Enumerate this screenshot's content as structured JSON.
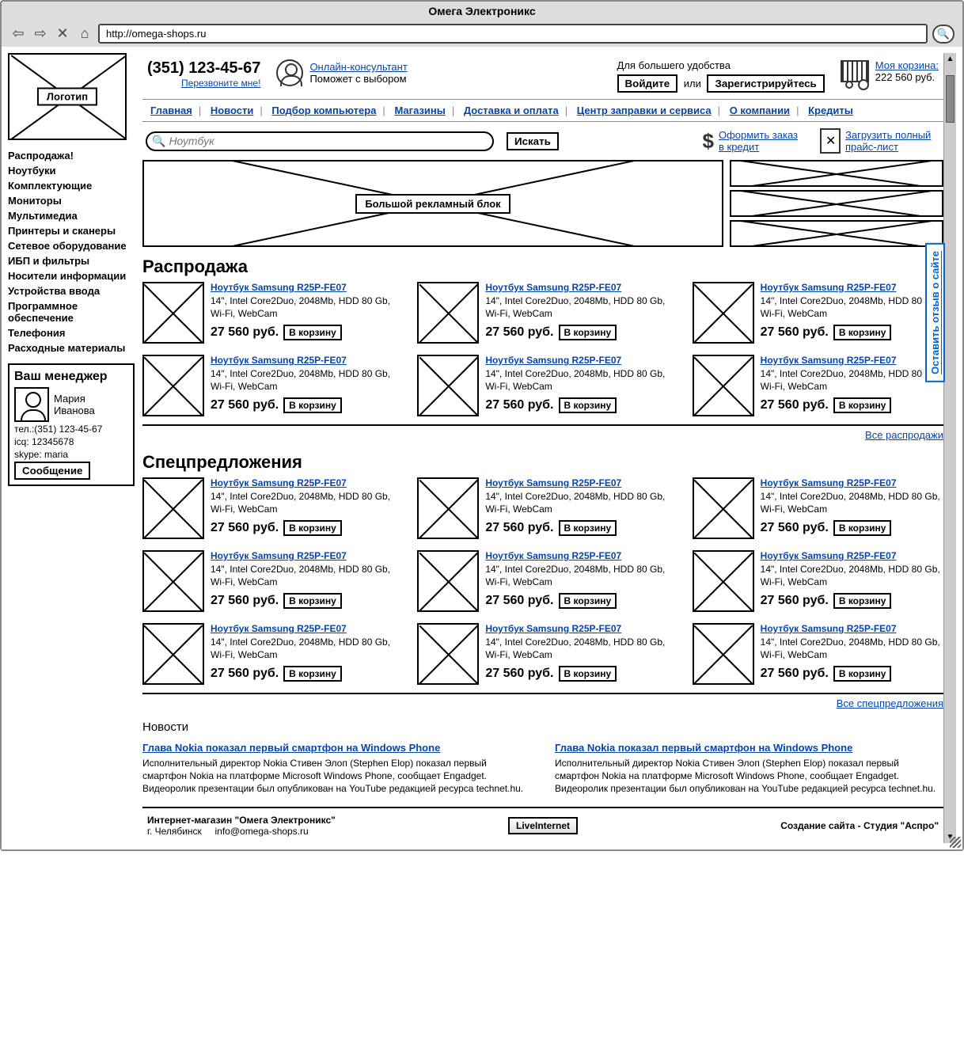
{
  "browser": {
    "title": "Омега Электроникс",
    "url": "http://omega-shops.ru"
  },
  "logo": {
    "label": "Логотип"
  },
  "header": {
    "phone": "(351) 123-45-67",
    "callback": "Перезвоните мне!",
    "consultant_link": "Онлайн-консультант",
    "consultant_hint": "Поможет с выбором",
    "convenience": "Для большего удобства",
    "login": "Войдите",
    "or": "или",
    "register": "Зарегистрируйтесь",
    "cart_label": "Моя корзина:",
    "cart_sum": "222 560 руб."
  },
  "nav": {
    "items": [
      "Главная",
      "Новости",
      "Подбор компьютера",
      "Магазины",
      "Доставка и оплата",
      "Центр заправки и сервиса",
      "О компании",
      "Кредиты"
    ]
  },
  "search": {
    "placeholder": "Ноутбук",
    "button": "Искать"
  },
  "sublinks": {
    "credit": "Оформить заказ в кредит",
    "price": "Загрузить полный прайс-лист"
  },
  "categories": [
    "Распродажа!",
    "Ноутбуки",
    "Комплектующие",
    "Мониторы",
    "Мультимедиа",
    "Принтеры и сканеры",
    "Сетевое оборудование",
    "ИБП и фильтры",
    "Носители информации",
    "Устройства ввода",
    "Программное обеспечение",
    "Телефония",
    "Расходные материалы"
  ],
  "manager": {
    "title": "Ваш менеджер",
    "name1": "Мария",
    "name2": "Иванова",
    "tel": "тел.:(351) 123-45-67",
    "icq": "icq: 12345678",
    "skype": "skype: maria",
    "msg": "Сообщение"
  },
  "promo": {
    "big_label": "Большой рекламный блок"
  },
  "sale": {
    "title": "Распродажа",
    "all": "Все распродажи"
  },
  "special": {
    "title": "Спецпредложения",
    "all": "Все спецпредложения"
  },
  "product": {
    "name": "Ноутбук Samsung R25P-FE07",
    "specs": "14\", Intel Core2Duo, 2048Mb, HDD 80 Gb, Wi-Fi, WebCam",
    "price": "27 560 руб.",
    "cart": "В корзину"
  },
  "news": {
    "heading": "Новости",
    "title": "Глава Nokia показал первый смартфон на Windows Phone",
    "body": "Исполнительный директор Nokia Стивен Элоп (Stephen Elop) показал первый смартфон Nokia на платформе Microsoft Windows Phone, сообщает Engadget. Видеоролик презентации был опубликован на YouTube редакцией ресурса technet.hu."
  },
  "footer": {
    "shop": "Интернет-магазин \"Омега Электроникс\"",
    "city": "г. Челябинск",
    "email": "info@omega-shops.ru",
    "counter": "LiveInternet",
    "credit": "Создание сайта - Студия \"Аспро\""
  },
  "feedback": "Оставить отзыв о сайте"
}
